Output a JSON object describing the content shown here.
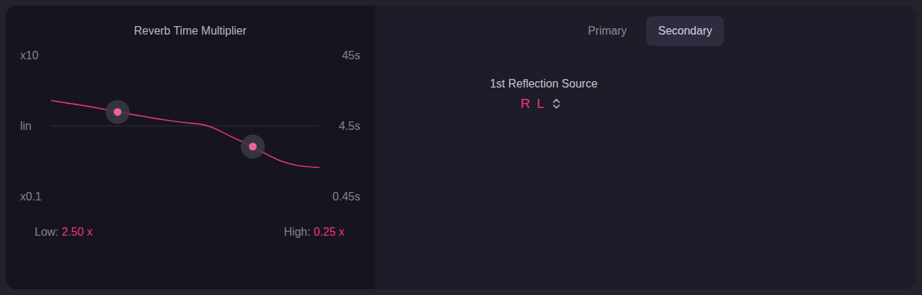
{
  "chart_data": {
    "type": "line",
    "title": "Reverb Time Multiplier",
    "log": "y",
    "tick_labels": "y",
    "grid": false,
    "x": [
      0,
      10.0,
      17.9,
      24.7,
      33.7,
      41.6,
      49.5,
      56.1,
      60.0,
      63.9,
      67.9,
      75.0,
      81.1,
      86.3,
      91.6,
      100
    ],
    "values": [
      2.29,
      2.0,
      1.78,
      1.58,
      1.38,
      1.23,
      1.12,
      1.05,
      0.95,
      0.81,
      0.68,
      0.51,
      0.38,
      0.31,
      0.275,
      0.257
    ],
    "color": "#e8347f",
    "handles": {
      "x": [
        24.7,
        75.0
      ],
      "y": [
        1.58,
        0.51
      ]
    },
    "reference_line": 1,
    "xlim": [
      0,
      100
    ],
    "ylim": [
      0.1,
      10
    ],
    "yticks": [
      {
        "value": 10,
        "label": "x10"
      },
      {
        "value": 1,
        "label": "lin"
      },
      {
        "value": 0.1,
        "label": "x0.1"
      }
    ],
    "y2lim": [
      0.45,
      45
    ],
    "y2ticks": [
      {
        "value": 45,
        "label": "45s"
      },
      {
        "value": 4.5,
        "label": "4.5s"
      },
      {
        "value": 0.45,
        "label": "0.45s"
      }
    ]
  },
  "ui": {
    "readouts": [
      {
        "label": "Low:",
        "value": 2.5,
        "value_label": "2.50 x"
      },
      {
        "label": "High:",
        "value": 0.25,
        "value_label": "0.25 x"
      }
    ],
    "tabs": {
      "items": [
        "Primary",
        "Secondary"
      ],
      "selected": "Secondary"
    },
    "setting": {
      "label": "1st Reflection Source",
      "value": "R L"
    }
  }
}
